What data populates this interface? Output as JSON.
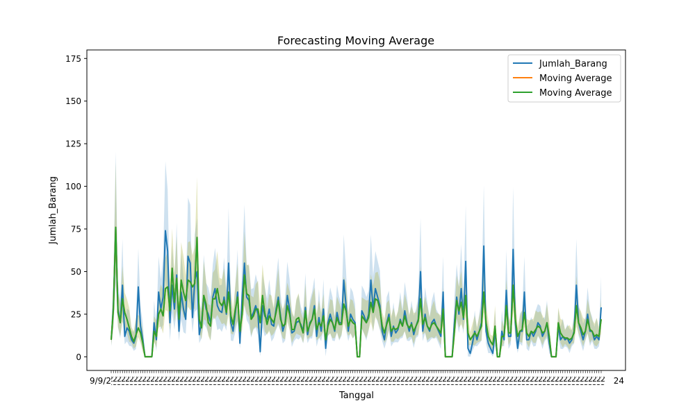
{
  "chart_data": {
    "type": "line",
    "title": "Forecasting Moving Average",
    "xlabel": "Tanggal",
    "ylabel": "Jumlah_Barang",
    "ylim": [
      -8,
      180
    ],
    "y_ticks": [
      0,
      25,
      50,
      75,
      100,
      125,
      150,
      175
    ],
    "x_tick_note": "x-axis tick labels are dense and overlapping (dates), not individually legible",
    "x_edge_labels": [
      "9/9/2",
      "24"
    ],
    "grid": false,
    "legend_position": "upper right",
    "colors": {
      "series_1": "#1f77b4",
      "series_2": "#ff7f0e",
      "series_3": "#2ca02c"
    },
    "series": [
      {
        "name": "Jumlah_Barang",
        "values": [
          10,
          30,
          75,
          28,
          20,
          42,
          12,
          17,
          15,
          10,
          8,
          12,
          41,
          18,
          10,
          0,
          0,
          0,
          0,
          20,
          10,
          38,
          28,
          35,
          74,
          62,
          20,
          42,
          28,
          48,
          15,
          38,
          28,
          22,
          59,
          55,
          23,
          45,
          50,
          13,
          20,
          36,
          28,
          25,
          20,
          35,
          40,
          30,
          27,
          26,
          35,
          25,
          55,
          20,
          15,
          26,
          38,
          8,
          35,
          55,
          35,
          33,
          23,
          26,
          30,
          25,
          3,
          30,
          24,
          22,
          28,
          19,
          18,
          28,
          35,
          24,
          15,
          20,
          36,
          28,
          14,
          15,
          20,
          21,
          19,
          15,
          29,
          13,
          20,
          22,
          30,
          12,
          23,
          15,
          28,
          5,
          20,
          25,
          20,
          15,
          26,
          20,
          20,
          45,
          30,
          15,
          25,
          22,
          20,
          0,
          0,
          27,
          24,
          20,
          25,
          45,
          28,
          40,
          35,
          30,
          15,
          10,
          20,
          25,
          12,
          18,
          14,
          16,
          22,
          18,
          27,
          20,
          15,
          20,
          13,
          18,
          22,
          50,
          15,
          25,
          18,
          15,
          20,
          22,
          18,
          15,
          12,
          38,
          0,
          0,
          0,
          0,
          20,
          35,
          25,
          40,
          22,
          56,
          5,
          2,
          8,
          15,
          10,
          15,
          20,
          65,
          15,
          8,
          5,
          2,
          15,
          0,
          0,
          15,
          10,
          39,
          12,
          12,
          63,
          20,
          5,
          15,
          15,
          38,
          10,
          10,
          15,
          12,
          15,
          20,
          18,
          12,
          15,
          20,
          8,
          0,
          0,
          0,
          18,
          10,
          12,
          10,
          11,
          8,
          10,
          15,
          42,
          20,
          15,
          10,
          15,
          25,
          15,
          15,
          10,
          12,
          10,
          29
        ]
      },
      {
        "name": "Moving Average",
        "values": [
          10,
          28,
          76,
          26,
          20,
          34,
          26,
          22,
          17,
          12,
          9,
          13,
          17,
          14,
          8,
          0,
          0,
          0,
          0,
          15,
          12,
          25,
          28,
          24,
          40,
          41,
          27,
          52,
          32,
          46,
          22,
          45,
          38,
          33,
          45,
          44,
          41,
          43,
          70,
          22,
          17,
          36,
          31,
          20,
          18,
          34,
          34,
          40,
          32,
          30,
          33,
          26,
          38,
          24,
          19,
          28,
          35,
          15,
          25,
          48,
          37,
          36,
          22,
          24,
          28,
          28,
          20,
          36,
          26,
          19,
          24,
          22,
          20,
          26,
          33,
          22,
          18,
          19,
          30,
          25,
          16,
          16,
          22,
          23,
          18,
          14,
          27,
          15,
          19,
          22,
          28,
          16,
          20,
          18,
          24,
          10,
          18,
          22,
          20,
          16,
          23,
          19,
          19,
          31,
          27,
          18,
          22,
          20,
          19,
          0,
          0,
          24,
          22,
          20,
          23,
          32,
          26,
          34,
          33,
          28,
          18,
          14,
          19,
          23,
          15,
          17,
          16,
          17,
          21,
          18,
          24,
          19,
          17,
          19,
          15,
          18,
          21,
          34,
          19,
          23,
          18,
          16,
          19,
          20,
          18,
          16,
          14,
          28,
          0,
          0,
          0,
          0,
          15,
          33,
          27,
          32,
          23,
          36,
          14,
          10,
          12,
          14,
          12,
          15,
          18,
          38,
          20,
          12,
          9,
          7,
          18,
          0,
          0,
          12,
          12,
          30,
          14,
          14,
          42,
          22,
          12,
          15,
          16,
          26,
          14,
          12,
          15,
          14,
          16,
          18,
          17,
          14,
          15,
          20,
          12,
          0,
          0,
          0,
          20,
          14,
          12,
          11,
          11,
          10,
          11,
          14,
          30,
          20,
          17,
          13,
          15,
          22,
          16,
          15,
          12,
          13,
          12,
          22
        ]
      },
      {
        "name": "Moving Average",
        "values": [
          10,
          28,
          76,
          26,
          20,
          34,
          26,
          22,
          17,
          12,
          9,
          13,
          17,
          14,
          8,
          0,
          0,
          0,
          0,
          15,
          12,
          25,
          28,
          24,
          40,
          41,
          27,
          52,
          32,
          46,
          22,
          45,
          38,
          33,
          45,
          44,
          41,
          43,
          70,
          22,
          17,
          36,
          31,
          20,
          18,
          34,
          34,
          40,
          32,
          30,
          33,
          26,
          38,
          24,
          19,
          28,
          35,
          15,
          25,
          48,
          37,
          36,
          22,
          24,
          28,
          28,
          20,
          36,
          26,
          19,
          24,
          22,
          20,
          26,
          33,
          22,
          18,
          19,
          30,
          25,
          16,
          16,
          22,
          23,
          18,
          14,
          27,
          15,
          19,
          22,
          28,
          16,
          20,
          18,
          24,
          10,
          18,
          22,
          20,
          16,
          23,
          19,
          19,
          31,
          27,
          18,
          22,
          20,
          19,
          0,
          0,
          24,
          22,
          20,
          23,
          32,
          26,
          34,
          33,
          28,
          18,
          14,
          19,
          23,
          15,
          17,
          16,
          17,
          21,
          18,
          24,
          19,
          17,
          19,
          15,
          18,
          21,
          34,
          19,
          23,
          18,
          16,
          19,
          20,
          18,
          16,
          14,
          28,
          0,
          0,
          0,
          0,
          15,
          33,
          27,
          32,
          23,
          36,
          14,
          10,
          12,
          14,
          12,
          15,
          18,
          38,
          20,
          12,
          9,
          7,
          18,
          0,
          0,
          12,
          12,
          30,
          14,
          14,
          42,
          22,
          12,
          15,
          16,
          26,
          14,
          12,
          15,
          14,
          16,
          18,
          17,
          14,
          15,
          20,
          12,
          0,
          0,
          0,
          20,
          14,
          12,
          11,
          11,
          10,
          11,
          14,
          30,
          20,
          17,
          13,
          15,
          22,
          16,
          15,
          12,
          13,
          12,
          22
        ]
      }
    ]
  }
}
